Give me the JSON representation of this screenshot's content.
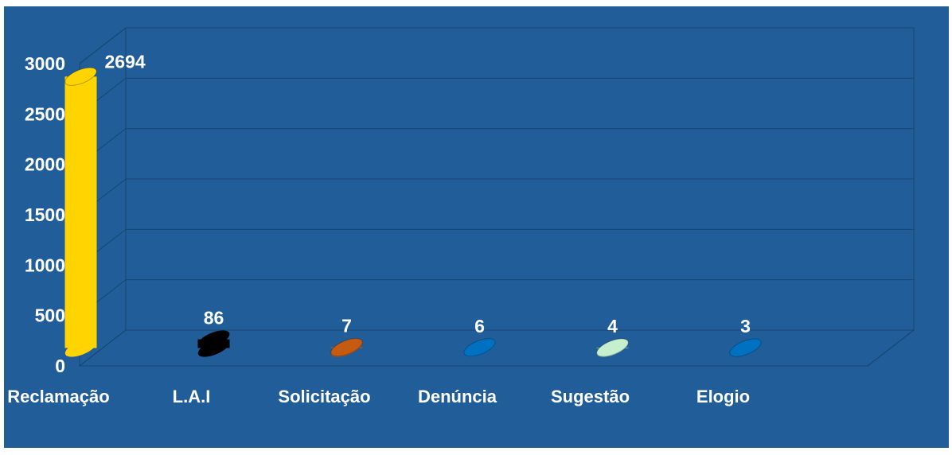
{
  "chart_data": {
    "type": "bar3d",
    "categories": [
      "Reclamação",
      "L.A.I",
      "Solicitação",
      "Denúncia",
      "Sugestão",
      "Elogio"
    ],
    "values": [
      2694,
      86,
      7,
      6,
      4,
      3
    ],
    "colors": [
      "#ffd400",
      "#000000",
      "#c55a11",
      "#0070c0",
      "#c6efce",
      "#0070c0"
    ],
    "ylim": [
      0,
      3000
    ],
    "yticks": [
      0,
      500,
      1000,
      1500,
      2000,
      2500,
      3000
    ],
    "grid": true
  }
}
